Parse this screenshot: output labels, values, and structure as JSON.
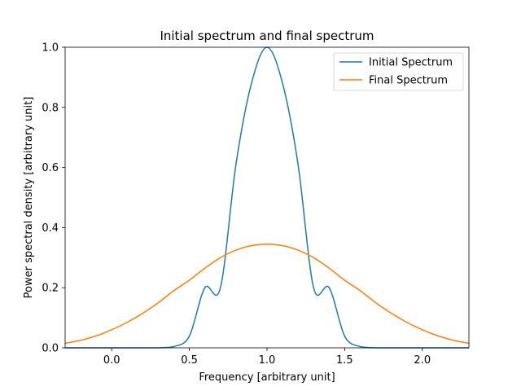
{
  "chart_data": {
    "type": "line",
    "title": "Initial spectrum and final spectrum",
    "xlabel": "Frequency [arbitrary unit]",
    "ylabel": "Power spectral density [arbitrary unit]",
    "xlim": [
      -0.3,
      2.3
    ],
    "ylim": [
      0.0,
      1.0
    ],
    "x_ticks": [
      0.0,
      0.5,
      1.0,
      1.5,
      2.0
    ],
    "x_tick_labels": [
      "0.0",
      "0.5",
      "1.0",
      "1.5",
      "2.0"
    ],
    "y_ticks": [
      0.0,
      0.2,
      0.4,
      0.6,
      0.8,
      1.0
    ],
    "y_tick_labels": [
      "0.0",
      "0.2",
      "0.4",
      "0.6",
      "0.8",
      "1.0"
    ],
    "grid": false,
    "legend_position": "top-right",
    "x": [
      -0.3,
      -0.2,
      -0.1,
      0.0,
      0.1,
      0.2,
      0.3,
      0.4,
      0.5,
      0.6,
      0.7,
      0.8,
      0.9,
      1.0,
      1.1,
      1.2,
      1.3,
      1.4,
      1.5,
      1.6,
      1.7,
      1.8,
      1.9,
      2.0,
      2.1,
      2.2,
      2.3
    ],
    "series": [
      {
        "name": "Initial Spectrum",
        "color": "#1f77b4",
        "values": [
          0.0,
          0.0,
          0.0,
          0.0,
          0.0,
          0.0,
          0.0,
          0.004,
          0.039,
          0.2,
          0.2,
          0.61,
          0.88,
          1.0,
          0.88,
          0.61,
          0.2,
          0.2,
          0.039,
          0.004,
          0.0,
          0.0,
          0.0,
          0.0,
          0.0,
          0.0,
          0.0
        ]
      },
      {
        "name": "Final Spectrum",
        "color": "#ff7f0e",
        "values": [
          0.015,
          0.025,
          0.04,
          0.06,
          0.085,
          0.115,
          0.15,
          0.19,
          0.225,
          0.265,
          0.3,
          0.325,
          0.34,
          0.345,
          0.34,
          0.325,
          0.3,
          0.265,
          0.225,
          0.19,
          0.15,
          0.115,
          0.085,
          0.06,
          0.04,
          0.025,
          0.015
        ]
      }
    ]
  }
}
